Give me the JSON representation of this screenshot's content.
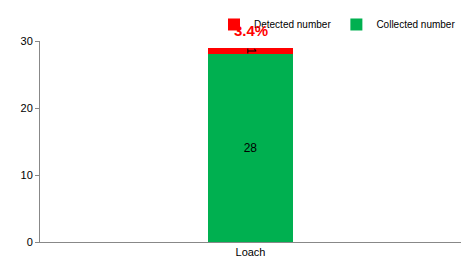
{
  "chart_data": {
    "type": "bar",
    "stacked": true,
    "categories": [
      "Loach"
    ],
    "series": [
      {
        "name": "Collected number",
        "color": "#00b050",
        "values": [
          28
        ]
      },
      {
        "name": "Detected number",
        "color": "#ff0000",
        "values": [
          1
        ]
      }
    ],
    "annotations": [
      {
        "text": "3.4%",
        "color": "#ff0000"
      }
    ],
    "ylim": [
      0,
      30
    ],
    "yticks": [
      0,
      10,
      20,
      30
    ],
    "grid": false,
    "legend": "upper right",
    "data_labels": true
  }
}
